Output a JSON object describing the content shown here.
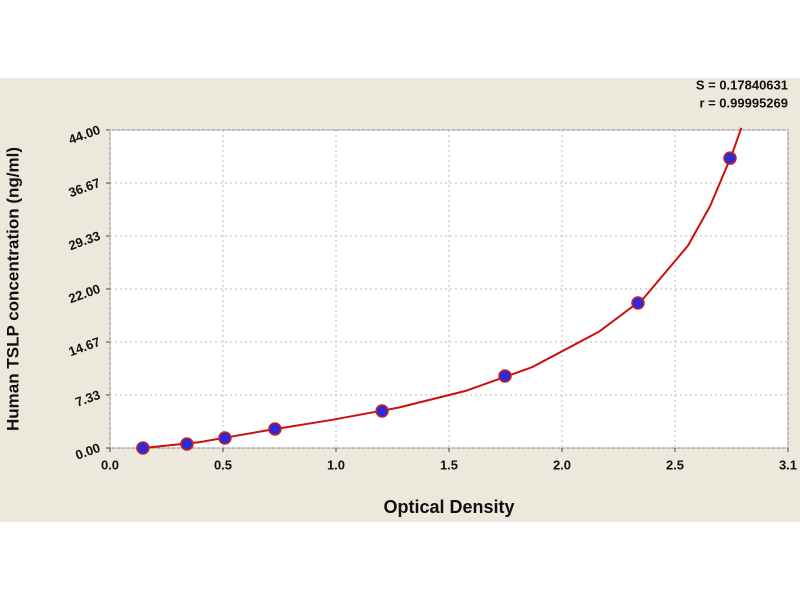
{
  "chart_data": {
    "type": "scatter",
    "annotations": [
      "S = 0.17840631",
      "r = 0.99995269"
    ],
    "x_label": "Optical Density",
    "y_label": "Human TSLP concentration (ng/ml)",
    "series": [
      {
        "color": "#2a2ad8",
        "edge_color": "#cc2020",
        "x": [
          0.148,
          0.346,
          0.517,
          0.742,
          1.224,
          1.777,
          2.375,
          2.789
        ],
        "values": [
          0.0,
          0.55,
          1.38,
          2.63,
          5.12,
          9.96,
          20.06,
          40.1
        ]
      }
    ],
    "fit_curve": {
      "color": "#cc1010",
      "x": [
        0.15,
        0.4,
        0.7,
        1.0,
        1.3,
        1.6,
        1.9,
        2.2,
        2.4,
        2.6,
        2.7,
        2.8,
        2.84
      ],
      "values": [
        0.0,
        0.8,
        2.4,
        3.9,
        5.6,
        7.9,
        11.2,
        16.1,
        20.7,
        28.0,
        33.5,
        40.8,
        44.3
      ]
    },
    "xlim": [
      0,
      3.05
    ],
    "xticks": [
      {
        "value": 0,
        "label": "0.0"
      },
      {
        "value": 0.5083,
        "label": "0.5"
      },
      {
        "value": 1.0167,
        "label": "1.0"
      },
      {
        "value": 1.525,
        "label": "1.5"
      },
      {
        "value": 2.0333,
        "label": "2.0"
      },
      {
        "value": 2.5417,
        "label": "2.5"
      },
      {
        "value": 3.05,
        "label": "3.1"
      }
    ],
    "ylim": [
      0,
      44
    ],
    "yticks": [
      {
        "value": 0,
        "label": "0.00"
      },
      {
        "value": 7.333,
        "label": "7.33"
      },
      {
        "value": 14.667,
        "label": "14.67"
      },
      {
        "value": 22,
        "label": "22.00"
      },
      {
        "value": 29.333,
        "label": "29.33"
      },
      {
        "value": 36.667,
        "label": "36.67"
      },
      {
        "value": 44,
        "label": "44.00"
      }
    ],
    "grid": true
  }
}
